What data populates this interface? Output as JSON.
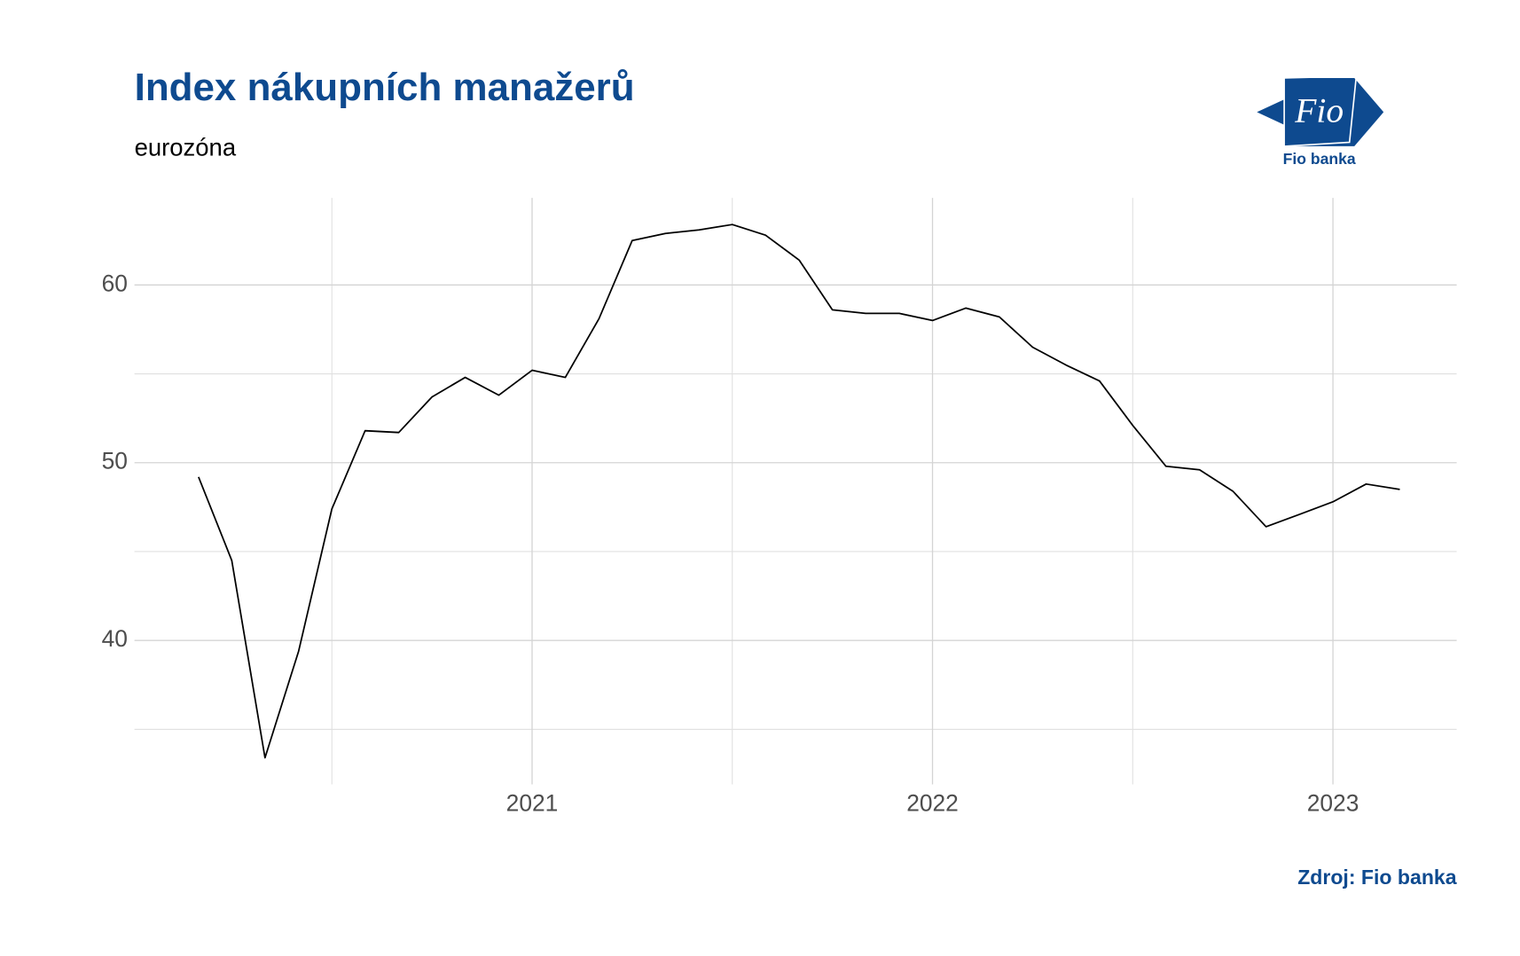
{
  "chart_data": {
    "type": "line",
    "title": "Index nákupních manažerů",
    "subtitle": "eurozóna",
    "source": "Zdroj: Fio banka",
    "logo": {
      "mark": "Fio",
      "caption": "Fio banka"
    },
    "x": [
      2020.167,
      2020.25,
      2020.333,
      2020.417,
      2020.5,
      2020.583,
      2020.667,
      2020.75,
      2020.833,
      2020.917,
      2021.0,
      2021.083,
      2021.167,
      2021.25,
      2021.333,
      2021.417,
      2021.5,
      2021.583,
      2021.667,
      2021.75,
      2021.833,
      2021.917,
      2022.0,
      2022.083,
      2022.167,
      2022.25,
      2022.333,
      2022.417,
      2022.5,
      2022.583,
      2022.667,
      2022.75,
      2022.833,
      2022.917,
      2023.0,
      2023.083,
      2023.167
    ],
    "series": [
      {
        "color": "#000000",
        "values": [
          49.2,
          44.5,
          33.4,
          39.4,
          47.4,
          51.8,
          51.7,
          53.7,
          54.8,
          53.8,
          55.2,
          54.8,
          58.1,
          62.5,
          62.9,
          63.1,
          63.4,
          62.8,
          61.4,
          58.6,
          58.4,
          58.4,
          58.0,
          58.7,
          58.2,
          56.5,
          55.5,
          54.6,
          52.1,
          49.8,
          49.6,
          48.4,
          46.4,
          47.1,
          47.8,
          48.8,
          48.5
        ]
      }
    ],
    "xlim": [
      2020.007,
      2023.309
    ],
    "xticks": [
      2021,
      2022,
      2023
    ],
    "x_minor_grid": [
      2020.5,
      2021.5,
      2022.5
    ],
    "ylim": [
      31.9,
      64.9
    ],
    "yticks": [
      40,
      50,
      60
    ],
    "y_minor_grid": [
      35,
      45,
      55
    ],
    "grid": true
  }
}
